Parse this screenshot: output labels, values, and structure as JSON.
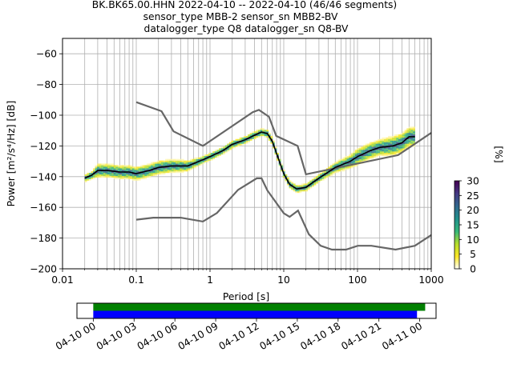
{
  "title_lines": [
    "BK.BK65.00.HHN   2022-04-10 -- 2022-04-10  (46/46 segments)",
    "sensor_type MBB-2 sensor_sn MBB2-BV",
    "datalogger_type Q8 datalogger_sn Q8-BV"
  ],
  "chart_data": [
    {
      "type": "heatmap",
      "xlabel": "Period [s]",
      "ylabel": "Power [m²/s⁴/Hz] [dB]",
      "xscale": "log",
      "xlim": [
        0.01,
        1000
      ],
      "ylim": [
        -200,
        -50
      ],
      "grid": true,
      "x_tick_labels": [
        "0.01",
        "0.1",
        "1",
        "10",
        "100",
        "1000"
      ],
      "y_ticks": [
        -60,
        -80,
        -100,
        -120,
        -140,
        -160,
        -180,
        -200
      ],
      "y_tick_labels": [
        "−60",
        "−80",
        "−100",
        "−120",
        "−140",
        "−160",
        "−180",
        "−200"
      ],
      "colorbar": {
        "label": "[%]",
        "min": 0,
        "max": 30,
        "ticks": [
          0,
          5,
          10,
          15,
          20,
          25,
          30
        ],
        "colormap": "viridis_white_r",
        "colors": [
          "#ffffff",
          "#fde725",
          "#b5de2b",
          "#35b779",
          "#21918c",
          "#31688e",
          "#443983",
          "#440154"
        ]
      },
      "noise_models": {
        "color": "#666666",
        "high": {
          "period": [
            0.1,
            0.22,
            0.32,
            0.8,
            3.8,
            4.6,
            6.3,
            7.9,
            15.4,
            20,
            354.8,
            1000
          ],
          "power": [
            -91.5,
            -97.4,
            -110.5,
            -120,
            -98,
            -96.5,
            -101,
            -113.5,
            -120,
            -138.5,
            -126,
            -111.5
          ]
        },
        "low": {
          "period": [
            0.1,
            0.17,
            0.4,
            0.8,
            1.24,
            2.4,
            4.3,
            5,
            6,
            10,
            12,
            15.6,
            21.9,
            31.6,
            45,
            70,
            101,
            154,
            328,
            600,
            1000
          ],
          "power": [
            -168,
            -166.7,
            -166.7,
            -169.2,
            -163.7,
            -148.6,
            -141.1,
            -141.1,
            -149,
            -163.8,
            -166.2,
            -162.1,
            -177.5,
            -185,
            -187.5,
            -187.5,
            -185,
            -185,
            -187.5,
            -185,
            -178
          ]
        }
      },
      "mode_curve": {
        "color": "#000000",
        "period": [
          0.02,
          0.025,
          0.03,
          0.04,
          0.06,
          0.08,
          0.1,
          0.15,
          0.2,
          0.3,
          0.5,
          0.8,
          1,
          1.5,
          2,
          3,
          4,
          5,
          6,
          7,
          8,
          10,
          12,
          15,
          20,
          30,
          50,
          80,
          100,
          150,
          200,
          300,
          400,
          500,
          600
        ],
        "power": [
          -141,
          -139,
          -136,
          -136,
          -137,
          -137,
          -138,
          -136,
          -134,
          -133,
          -133,
          -129,
          -127,
          -123,
          -119,
          -116,
          -113,
          -111,
          -112,
          -117,
          -125,
          -138,
          -145,
          -148,
          -147,
          -141,
          -134,
          -130,
          -127,
          -123,
          -121,
          -120,
          -118,
          -114,
          -114
        ]
      },
      "spread": {
        "period": [
          0.02,
          0.025,
          0.03,
          0.04,
          0.06,
          0.08,
          0.1,
          0.15,
          0.2,
          0.3,
          0.5,
          0.8,
          1,
          1.5,
          2,
          3,
          4,
          5,
          6,
          7,
          8,
          10,
          12,
          15,
          20,
          30,
          50,
          80,
          100,
          150,
          200,
          300,
          400,
          500,
          600
        ],
        "half_width_db": [
          2,
          2,
          4,
          4,
          4,
          4,
          4,
          4,
          4,
          4,
          3,
          2,
          2,
          2,
          2,
          2,
          2,
          2,
          2,
          2,
          2,
          2,
          2,
          2,
          2,
          2,
          3,
          4,
          5,
          5,
          5,
          6,
          6,
          6,
          6
        ]
      }
    },
    {
      "type": "bar",
      "x_tick_labels": [
        "04-10 00",
        "04-10 03",
        "04-10 06",
        "04-10 09",
        "04-10 12",
        "04-10 15",
        "04-10 18",
        "04-10 21",
        "04-11 00"
      ],
      "xlim_hours": [
        -1.2,
        25.2
      ],
      "bars": [
        {
          "start_hours": 0,
          "end_hours": 24.4,
          "color": "#008000"
        },
        {
          "start_hours": 0,
          "end_hours": 23.8,
          "color": "#0000ff"
        }
      ]
    }
  ]
}
